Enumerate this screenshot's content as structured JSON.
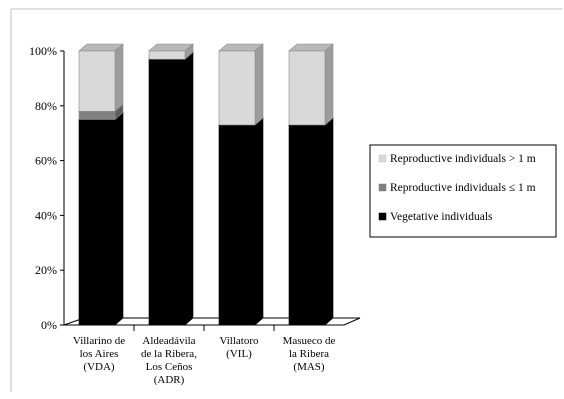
{
  "chart_data": {
    "type": "bar",
    "stacked": true,
    "three_d": true,
    "categories": [
      [
        "Villarino de",
        "los Aires",
        "(VDA)"
      ],
      [
        "Aldeadávila",
        "de la Ribera,",
        "Los Ceños",
        "(ADR)"
      ],
      [
        "Villatoro",
        "(VIL)"
      ],
      [
        "Masueco de",
        "la Ribera",
        "(MAS)"
      ]
    ],
    "series": [
      {
        "name": "Vegetative individuals",
        "values": [
          75,
          97,
          73,
          73
        ],
        "color": "#000000"
      },
      {
        "name": "Reproductive individuals ≤ 1 m",
        "values": [
          3,
          0,
          0,
          0
        ],
        "color": "#808080"
      },
      {
        "name": "Reproductive individuals > 1 m",
        "values": [
          22,
          3,
          27,
          27
        ],
        "color": "#d9d9d9"
      }
    ],
    "ylim": [
      0,
      100
    ],
    "yticks": [
      "0%",
      "20%",
      "40%",
      "60%",
      "80%",
      "100%"
    ],
    "grid": false,
    "legend_position": "right",
    "legend_order": [
      2,
      1,
      0
    ]
  }
}
